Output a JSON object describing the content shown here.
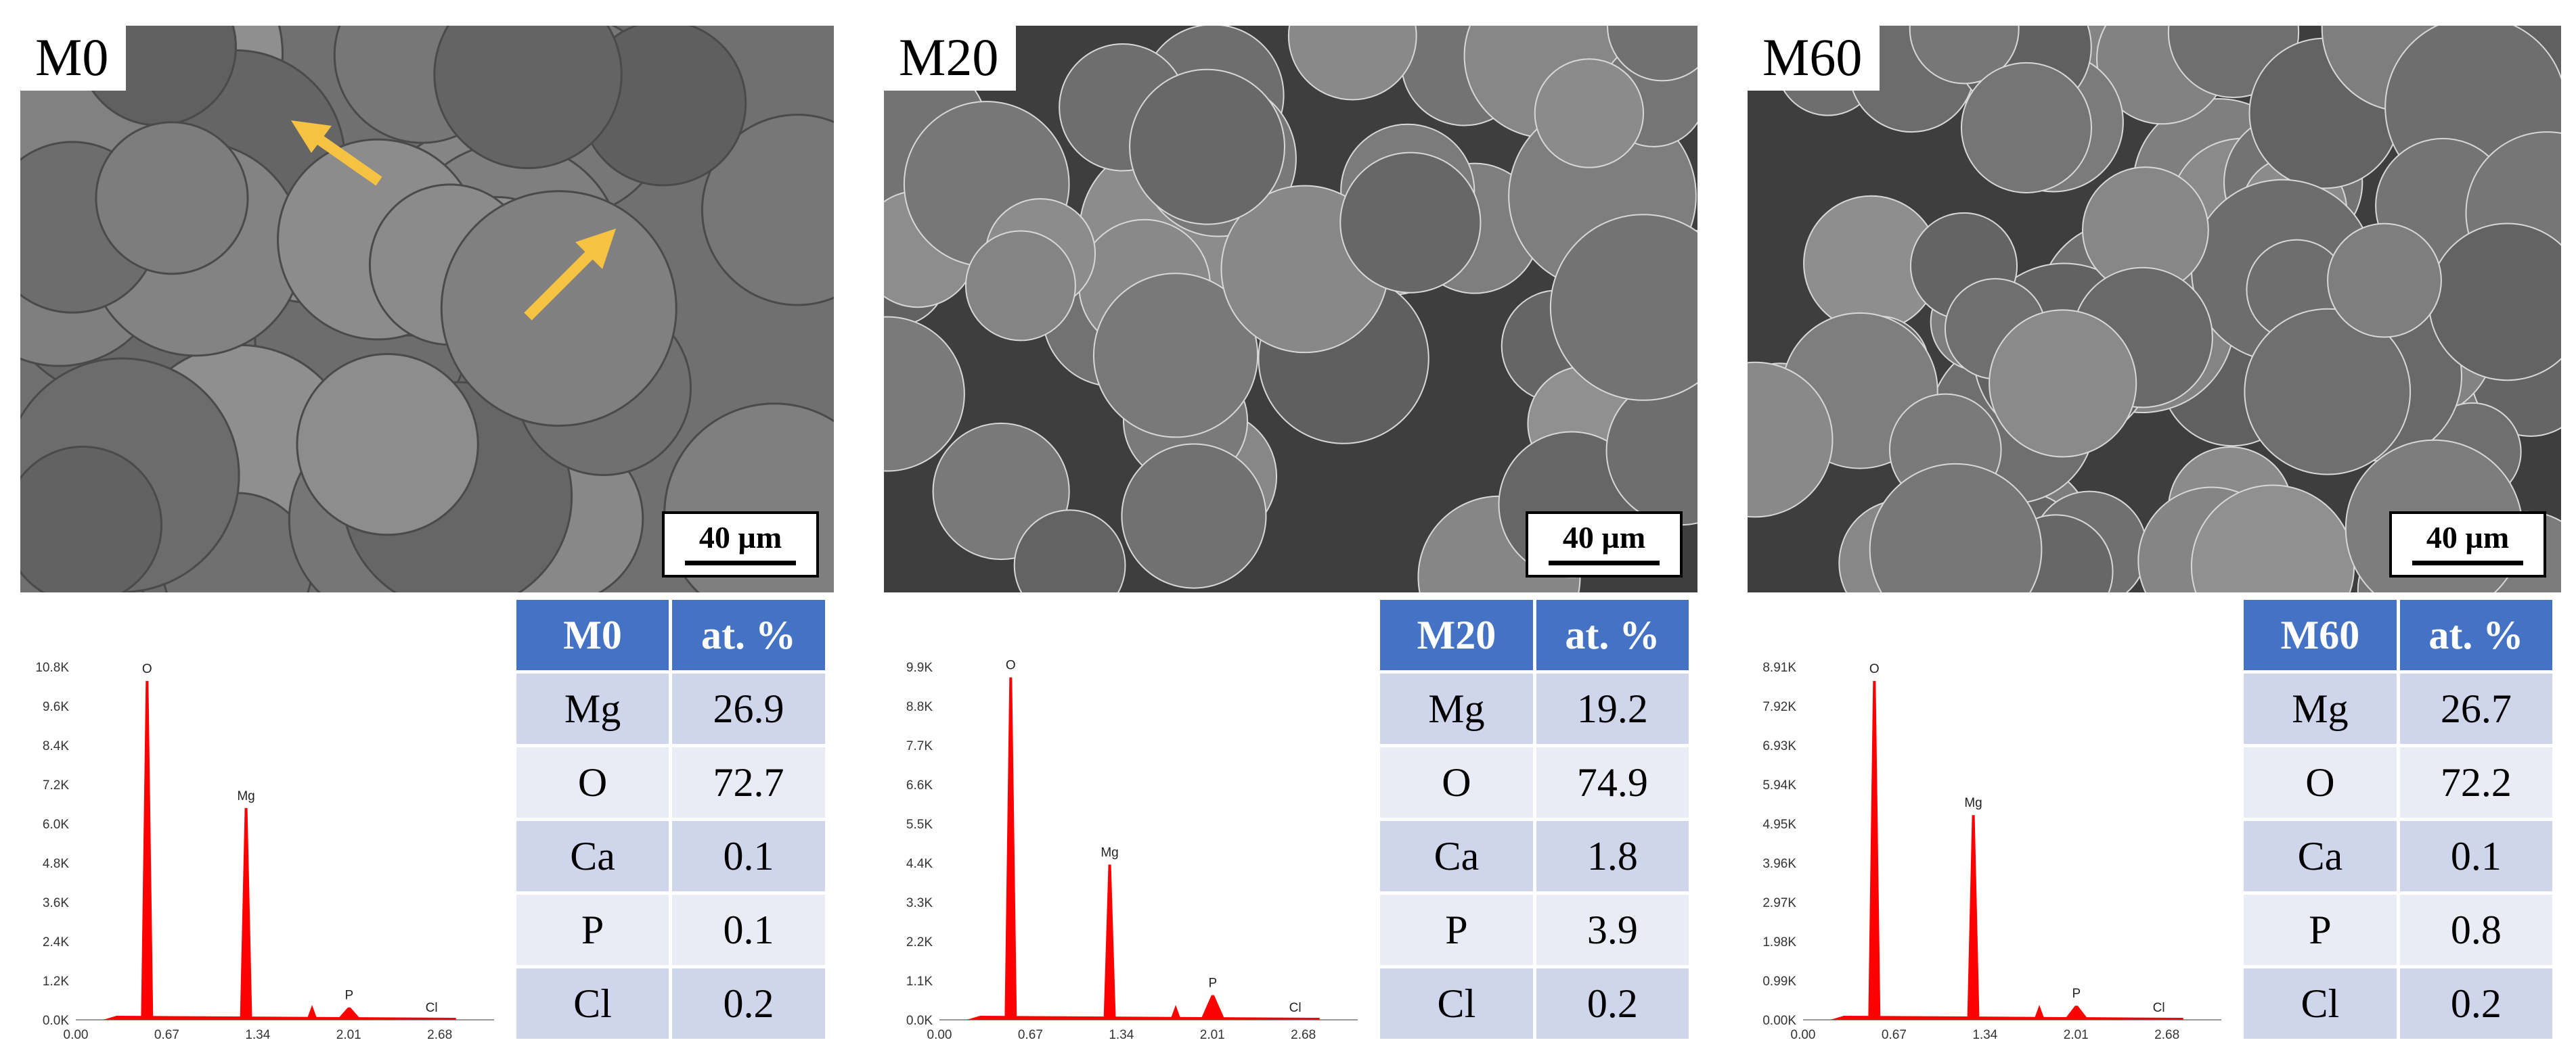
{
  "figure": {
    "panels": [
      {
        "label": "M0",
        "scale_bar": "40 µm",
        "table": {
          "header": [
            "M0",
            "at. %"
          ],
          "rows": [
            [
              "Mg",
              "26.9"
            ],
            [
              "O",
              "72.7"
            ],
            [
              "Ca",
              "0.1"
            ],
            [
              "P",
              "0.1"
            ],
            [
              "Cl",
              "0.2"
            ]
          ]
        },
        "spectrum": {
          "y_ticks": [
            "10.8K",
            "9.6K",
            "8.4K",
            "7.2K",
            "6.0K",
            "4.8K",
            "3.6K",
            "2.4K",
            "1.2K",
            "0.0K"
          ],
          "x_ticks": [
            "0.00",
            "0.67",
            "1.34",
            "2.01",
            "2.68"
          ],
          "peaks": [
            {
              "name": "O",
              "frac": 0.96
            },
            {
              "name": "Mg",
              "frac": 0.6
            },
            {
              "name": "P",
              "frac": 0.035
            },
            {
              "name": "Cl",
              "frac": 0.0
            }
          ]
        }
      },
      {
        "label": "M20",
        "scale_bar": "40 µm",
        "table": {
          "header": [
            "M20",
            "at. %"
          ],
          "rows": [
            [
              "Mg",
              "19.2"
            ],
            [
              "O",
              "74.9"
            ],
            [
              "Ca",
              "1.8"
            ],
            [
              "P",
              "3.9"
            ],
            [
              "Cl",
              "0.2"
            ]
          ]
        },
        "spectrum": {
          "y_ticks": [
            "9.9K",
            "8.8K",
            "7.7K",
            "6.6K",
            "5.5K",
            "4.4K",
            "3.3K",
            "2.2K",
            "1.1K",
            "0.0K"
          ],
          "x_ticks": [
            "0.00",
            "0.67",
            "1.34",
            "2.01",
            "2.68"
          ],
          "peaks": [
            {
              "name": "O",
              "frac": 0.97
            },
            {
              "name": "Mg",
              "frac": 0.44
            },
            {
              "name": "P",
              "frac": 0.07
            },
            {
              "name": "Cl",
              "frac": 0.0
            }
          ]
        }
      },
      {
        "label": "M60",
        "scale_bar": "40 µm",
        "table": {
          "header": [
            "M60",
            "at. %"
          ],
          "rows": [
            [
              "Mg",
              "26.7"
            ],
            [
              "O",
              "72.2"
            ],
            [
              "Ca",
              "0.1"
            ],
            [
              "P",
              "0.8"
            ],
            [
              "Cl",
              "0.2"
            ]
          ]
        },
        "spectrum": {
          "y_ticks": [
            "8.91K",
            "7.92K",
            "6.93K",
            "5.94K",
            "4.95K",
            "3.96K",
            "2.97K",
            "1.98K",
            "0.99K",
            "0.00K"
          ],
          "x_ticks": [
            "0.00",
            "0.67",
            "1.34",
            "2.01",
            "2.68"
          ],
          "peaks": [
            {
              "name": "O",
              "frac": 0.96
            },
            {
              "name": "Mg",
              "frac": 0.58
            },
            {
              "name": "P",
              "frac": 0.04
            },
            {
              "name": "Cl",
              "frac": 0.0
            }
          ]
        }
      }
    ],
    "colors": {
      "spectrum": "#ff0000",
      "header": "#4472c4",
      "row_odd": "#cfd5ea",
      "row_even": "#e9ebf5",
      "arrow": "#f5c242"
    }
  }
}
